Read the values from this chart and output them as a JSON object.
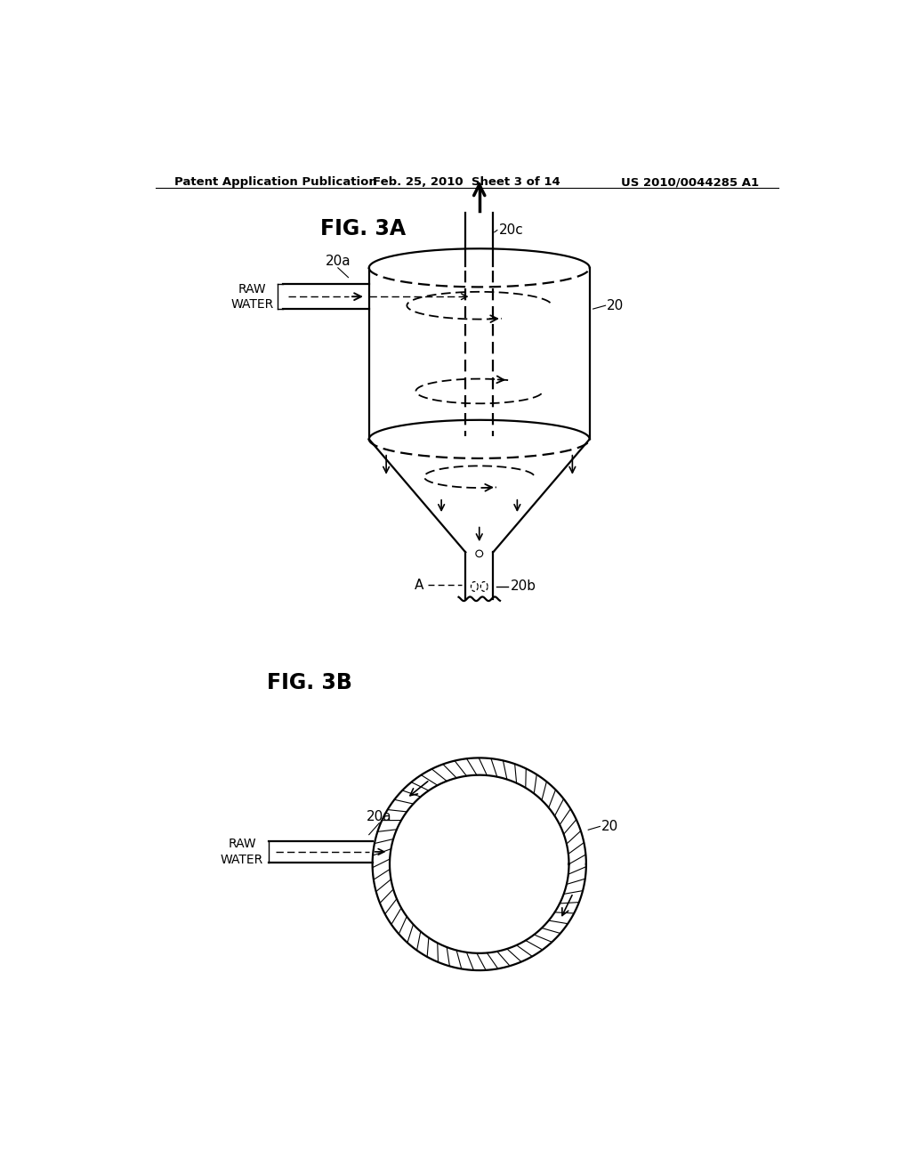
{
  "bg_color": "#ffffff",
  "header_left": "Patent Application Publication",
  "header_mid": "Feb. 25, 2010  Sheet 3 of 14",
  "header_right": "US 2010/0044285 A1",
  "fig3a_label": "FIG. 3A",
  "fig3b_label": "FIG. 3B",
  "label_20": "20",
  "label_20a_3a": "20a",
  "label_20b": "20b",
  "label_20c": "20c",
  "label_20a_3b": "20a",
  "label_20_3b": "20",
  "label_raw_water_3a": "RAW\nWATER",
  "label_raw_water_3b": "RAW\nWATER",
  "label_A": "A"
}
